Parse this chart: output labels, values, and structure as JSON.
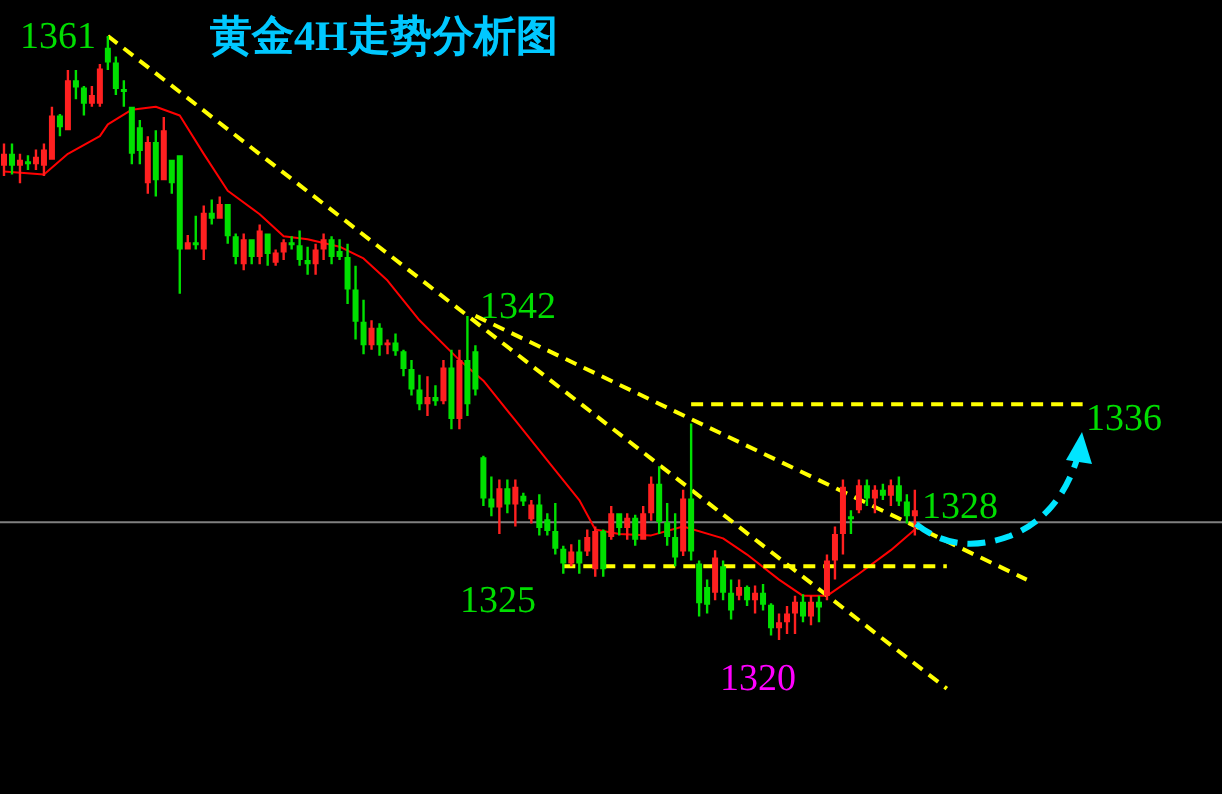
{
  "chart_data": {
    "type": "candlestick",
    "title": "黄金4H走势分析图",
    "tick_labels": false,
    "categories": [
      null,
      null,
      null,
      null,
      null,
      null,
      null,
      null,
      null,
      null,
      null,
      null,
      null,
      null,
      null,
      null,
      null,
      null,
      null,
      null,
      null,
      null,
      null,
      null,
      null,
      null,
      null,
      null,
      null,
      null,
      null,
      null,
      null,
      null,
      null,
      null,
      null,
      null,
      null,
      null,
      null,
      null,
      null,
      null,
      null,
      null,
      null,
      null,
      null,
      null,
      null,
      null,
      null,
      null,
      null,
      null,
      null,
      null,
      null,
      null,
      null,
      null,
      null,
      null,
      null,
      null,
      null,
      null,
      null,
      null,
      null,
      null,
      null,
      null,
      null,
      null,
      null,
      null,
      null,
      null,
      null,
      null,
      null,
      null,
      null,
      null,
      null,
      null,
      null,
      null,
      null,
      null,
      null,
      null,
      null,
      null,
      null,
      null,
      null,
      null,
      null,
      null,
      null,
      null,
      null,
      null,
      null,
      null,
      null,
      null,
      null,
      null,
      null,
      null,
      null,
      null,
      null,
      null,
      null,
      null,
      null,
      null,
      null,
      null,
      null,
      null,
      null,
      null,
      null,
      null,
      null,
      null,
      null,
      null,
      null,
      null
    ],
    "ohlc": [
      [
        1352.2,
        1353.7,
        1351.5,
        1353.0
      ],
      [
        1353.0,
        1353.7,
        1351.6,
        1352.2
      ],
      [
        1352.2,
        1353.0,
        1351.0,
        1352.6
      ],
      [
        1352.5,
        1352.9,
        1351.9,
        1352.3
      ],
      [
        1352.3,
        1353.3,
        1351.9,
        1352.8
      ],
      [
        1352.2,
        1353.7,
        1351.5,
        1353.3
      ],
      [
        1352.6,
        1356.2,
        1352.6,
        1355.6
      ],
      [
        1355.6,
        1355.7,
        1354.2,
        1354.8
      ],
      [
        1354.6,
        1358.7,
        1354.6,
        1358.0
      ],
      [
        1358.0,
        1358.7,
        1356.7,
        1357.5
      ],
      [
        1357.5,
        1357.6,
        1355.6,
        1356.4
      ],
      [
        1356.4,
        1357.6,
        1356.2,
        1357.0
      ],
      [
        1356.4,
        1359.1,
        1356.2,
        1358.8
      ],
      [
        1360.2,
        1361.0,
        1358.7,
        1359.2
      ],
      [
        1359.2,
        1359.6,
        1357.0,
        1357.4
      ],
      [
        1357.4,
        1358.0,
        1356.2,
        1357.2
      ],
      [
        1356.2,
        1356.2,
        1352.3,
        1353.0
      ],
      [
        1354.8,
        1355.3,
        1352.3,
        1353.2
      ],
      [
        1351.0,
        1354.2,
        1350.3,
        1353.8
      ],
      [
        1353.8,
        1354.6,
        1350.1,
        1351.2
      ],
      [
        1351.2,
        1355.5,
        1351.2,
        1354.6
      ],
      [
        1352.6,
        1352.6,
        1350.3,
        1351.0
      ],
      [
        1352.9,
        1352.9,
        1343.5,
        1346.5
      ],
      [
        1346.5,
        1347.5,
        1346.5,
        1347.0
      ],
      [
        1347.0,
        1348.8,
        1346.5,
        1346.8
      ],
      [
        1346.5,
        1349.5,
        1345.8,
        1349.0
      ],
      [
        1349.0,
        1349.9,
        1348.2,
        1348.6
      ],
      [
        1348.6,
        1350.1,
        1348.6,
        1349.6
      ],
      [
        1349.6,
        1349.6,
        1346.9,
        1347.4
      ],
      [
        1347.4,
        1347.6,
        1345.5,
        1346.0
      ],
      [
        1345.5,
        1347.6,
        1345.1,
        1347.2
      ],
      [
        1347.2,
        1347.2,
        1345.5,
        1346.0
      ],
      [
        1346.0,
        1348.2,
        1345.5,
        1347.8
      ],
      [
        1347.6,
        1347.6,
        1345.4,
        1346.2
      ],
      [
        1345.6,
        1346.5,
        1345.4,
        1346.3
      ],
      [
        1346.3,
        1347.2,
        1345.8,
        1347.0
      ],
      [
        1347.0,
        1347.4,
        1346.5,
        1346.8
      ],
      [
        1346.8,
        1347.8,
        1345.4,
        1345.8
      ],
      [
        1345.8,
        1346.7,
        1344.8,
        1345.5
      ],
      [
        1345.5,
        1346.9,
        1344.8,
        1346.5
      ],
      [
        1346.5,
        1347.6,
        1345.8,
        1347.2
      ],
      [
        1347.2,
        1347.4,
        1345.5,
        1346.0
      ],
      [
        1346.4,
        1347.2,
        1345.8,
        1346.0
      ],
      [
        1346.0,
        1346.9,
        1342.8,
        1343.8
      ],
      [
        1343.8,
        1345.4,
        1340.4,
        1341.6
      ],
      [
        1341.6,
        1343.1,
        1339.4,
        1340.0
      ],
      [
        1340.0,
        1341.7,
        1339.7,
        1341.2
      ],
      [
        1341.2,
        1341.5,
        1339.3,
        1340.0
      ],
      [
        1340.0,
        1340.4,
        1339.4,
        1340.2
      ],
      [
        1340.2,
        1340.8,
        1339.3,
        1339.6
      ],
      [
        1339.6,
        1339.7,
        1337.9,
        1338.4
      ],
      [
        1338.4,
        1339.0,
        1336.6,
        1337.0
      ],
      [
        1337.0,
        1338.0,
        1335.6,
        1336.0
      ],
      [
        1336.0,
        1337.9,
        1335.2,
        1336.5
      ],
      [
        1336.5,
        1337.3,
        1335.9,
        1336.2
      ],
      [
        1336.2,
        1339.0,
        1336.0,
        1338.5
      ],
      [
        1338.5,
        1339.7,
        1334.3,
        1335.0
      ],
      [
        1335.0,
        1339.7,
        1334.3,
        1339.0
      ],
      [
        1339.0,
        1342.0,
        1335.2,
        1336.0
      ],
      [
        1339.6,
        1340.0,
        1336.6,
        1337.0
      ],
      [
        1332.4,
        1332.5,
        1329.1,
        1329.6
      ],
      [
        1329.6,
        1331.1,
        1328.4,
        1329.0
      ],
      [
        1329.0,
        1330.9,
        1327.2,
        1330.3
      ],
      [
        1330.3,
        1330.9,
        1328.6,
        1329.2
      ],
      [
        1329.2,
        1330.9,
        1327.7,
        1330.4
      ],
      [
        1329.8,
        1330.0,
        1329.1,
        1329.4
      ],
      [
        1328.2,
        1329.5,
        1327.9,
        1329.2
      ],
      [
        1329.2,
        1329.9,
        1327.1,
        1327.6
      ],
      [
        1328.2,
        1328.6,
        1327.1,
        1327.4
      ],
      [
        1327.4,
        1329.3,
        1325.8,
        1326.2
      ],
      [
        1326.2,
        1326.4,
        1324.5,
        1325.2
      ],
      [
        1325.2,
        1326.5,
        1325.0,
        1326.0
      ],
      [
        1326.0,
        1326.8,
        1324.5,
        1325.2
      ],
      [
        1326.0,
        1327.5,
        1325.7,
        1327.0
      ],
      [
        1324.8,
        1327.7,
        1324.3,
        1327.4
      ],
      [
        1327.4,
        1327.5,
        1324.3,
        1324.8
      ],
      [
        1327.0,
        1329.1,
        1326.8,
        1328.6
      ],
      [
        1328.6,
        1328.6,
        1327.1,
        1327.6
      ],
      [
        1327.6,
        1328.6,
        1326.8,
        1328.3
      ],
      [
        1328.3,
        1328.5,
        1326.4,
        1326.8
      ],
      [
        1326.8,
        1329.1,
        1326.8,
        1328.6
      ],
      [
        1328.6,
        1331.1,
        1328.1,
        1330.6
      ],
      [
        1330.6,
        1331.8,
        1327.2,
        1328.0
      ],
      [
        1328.0,
        1329.3,
        1326.4,
        1327.0
      ],
      [
        1327.0,
        1328.6,
        1325.0,
        1325.6
      ],
      [
        1326.0,
        1330.2,
        1325.7,
        1329.6
      ],
      [
        1329.6,
        1334.7,
        1325.4,
        1326.0
      ],
      [
        1325.2,
        1325.4,
        1321.6,
        1322.5
      ],
      [
        1323.6,
        1324.1,
        1321.8,
        1322.4
      ],
      [
        1323.2,
        1326.1,
        1322.7,
        1325.6
      ],
      [
        1325.0,
        1325.4,
        1322.7,
        1323.2
      ],
      [
        1323.2,
        1324.1,
        1321.4,
        1322.0
      ],
      [
        1323.0,
        1324.1,
        1322.7,
        1323.6
      ],
      [
        1323.6,
        1323.7,
        1322.3,
        1322.7
      ],
      [
        1322.7,
        1323.7,
        1321.8,
        1323.2
      ],
      [
        1323.2,
        1323.8,
        1322.0,
        1322.4
      ],
      [
        1322.4,
        1322.5,
        1320.3,
        1320.8
      ],
      [
        1320.8,
        1321.8,
        1320.0,
        1321.2
      ],
      [
        1321.2,
        1322.3,
        1320.4,
        1321.8
      ],
      [
        1321.8,
        1323.0,
        1320.4,
        1322.6
      ],
      [
        1322.6,
        1323.1,
        1321.2,
        1321.6
      ],
      [
        1321.6,
        1323.0,
        1321.0,
        1322.6
      ],
      [
        1322.6,
        1323.0,
        1321.2,
        1322.2
      ],
      [
        1323.0,
        1325.8,
        1322.7,
        1325.4
      ],
      [
        1325.4,
        1327.7,
        1324.1,
        1327.2
      ],
      [
        1327.2,
        1330.9,
        1325.8,
        1330.4
      ],
      [
        1328.4,
        1328.8,
        1327.2,
        1328.2
      ],
      [
        1328.8,
        1330.9,
        1328.6,
        1330.5
      ],
      [
        1330.5,
        1330.9,
        1329.1,
        1329.6
      ],
      [
        1329.6,
        1330.5,
        1328.6,
        1330.2
      ],
      [
        1330.2,
        1330.6,
        1329.5,
        1329.8
      ],
      [
        1329.8,
        1330.9,
        1329.1,
        1330.5
      ],
      [
        1330.5,
        1331.1,
        1329.1,
        1329.4
      ],
      [
        1329.4,
        1329.9,
        1327.9,
        1328.4
      ],
      [
        1328.4,
        1330.2,
        1327.1,
        1328.8
      ],
      null,
      null,
      null,
      null,
      null,
      null,
      null,
      null,
      null,
      null,
      null,
      null,
      null,
      null,
      null,
      null,
      null,
      null,
      null,
      null,
      null
    ],
    "series": [
      {
        "type": "line",
        "color": "#ff0000",
        "values": [
          1351.8,
          null,
          null,
          null,
          null,
          1351.6,
          null,
          null,
          1353.0,
          null,
          null,
          null,
          1354.2,
          1355.0,
          null,
          null,
          1356.0,
          null,
          null,
          1356.2,
          null,
          null,
          1355.6,
          null,
          null,
          1353.0,
          null,
          null,
          1350.5,
          null,
          null,
          null,
          1348.9,
          null,
          null,
          1347.4,
          null,
          null,
          1347.2,
          null,
          null,
          null,
          1346.7,
          null,
          null,
          1345.9,
          null,
          null,
          1344.4,
          null,
          null,
          null,
          1341.7,
          null,
          null,
          null,
          null,
          1339.0,
          null,
          null,
          1337.6,
          null,
          null,
          null,
          1334.9,
          null,
          null,
          null,
          1332.2,
          null,
          null,
          null,
          1329.5,
          null,
          1327.5,
          null,
          null,
          1327.2,
          null,
          null,
          null,
          1327.1,
          null,
          null,
          null,
          1327.7,
          null,
          null,
          null,
          null,
          1326.9,
          null,
          null,
          1325.8,
          null,
          null,
          null,
          1324.1,
          null,
          null,
          1323.0,
          null,
          null,
          1323.0,
          null,
          null,
          null,
          1324.5,
          null,
          null,
          null,
          1326.1,
          null,
          null,
          1327.5,
          null,
          null,
          null,
          null,
          null,
          null,
          null,
          null,
          null,
          null,
          null,
          null,
          null,
          null,
          null,
          null,
          null,
          null,
          null,
          null,
          null
        ]
      },
      {
        "type": "line",
        "color": "#ffff00",
        "line_style": "dashed",
        "values": [
          null,
          null,
          null,
          null,
          null,
          null,
          null,
          null,
          null,
          null,
          null,
          null,
          null,
          1361,
          null,
          null,
          null,
          null,
          null,
          null,
          null,
          null,
          null,
          null,
          null,
          null,
          null,
          null,
          null,
          null,
          null,
          null,
          null,
          null,
          null,
          null,
          null,
          null,
          null,
          null,
          null,
          null,
          null,
          null,
          null,
          null,
          null,
          null,
          null,
          null,
          null,
          null,
          null,
          null,
          null,
          null,
          null,
          null,
          null,
          null,
          null,
          null,
          null,
          null,
          null,
          null,
          null,
          null,
          null,
          null,
          null,
          null,
          null,
          null,
          null,
          null,
          null,
          null,
          null,
          null,
          null,
          null,
          null,
          null,
          null,
          null,
          null,
          null,
          null,
          null,
          null,
          null,
          null,
          null,
          null,
          null,
          null,
          null,
          null,
          null,
          null,
          null,
          null,
          null,
          null,
          null,
          null,
          null,
          null,
          null,
          null,
          null,
          null,
          null,
          null,
          null,
          null,
          null,
          1316.7,
          null,
          null,
          null,
          null,
          null,
          null,
          null,
          null,
          null,
          null,
          null,
          null,
          null,
          null,
          null,
          null,
          null
        ]
      },
      {
        "type": "line",
        "color": "#ffff00",
        "line_style": "dashed",
        "values": [
          null,
          null,
          null,
          null,
          null,
          null,
          null,
          null,
          null,
          null,
          null,
          null,
          null,
          null,
          null,
          null,
          null,
          null,
          null,
          null,
          null,
          null,
          null,
          null,
          null,
          null,
          null,
          null,
          null,
          null,
          null,
          null,
          null,
          null,
          null,
          null,
          null,
          null,
          null,
          null,
          null,
          null,
          null,
          null,
          null,
          null,
          null,
          null,
          null,
          null,
          null,
          null,
          null,
          null,
          null,
          null,
          null,
          null,
          null,
          1342,
          null,
          null,
          null,
          null,
          null,
          null,
          null,
          null,
          null,
          null,
          null,
          null,
          null,
          null,
          null,
          null,
          null,
          null,
          null,
          null,
          null,
          null,
          null,
          null,
          null,
          null,
          null,
          null,
          null,
          null,
          null,
          null,
          null,
          null,
          null,
          null,
          null,
          null,
          null,
          null,
          null,
          null,
          null,
          null,
          null,
          null,
          null,
          null,
          null,
          null,
          null,
          null,
          null,
          null,
          null,
          null,
          null,
          null,
          null,
          null,
          null,
          null,
          null,
          null,
          null,
          null,
          null,
          null,
          1324.1,
          null,
          null,
          null,
          null,
          null,
          null,
          null
        ]
      },
      {
        "type": "line",
        "color": "#ffff00",
        "line_style": "dashed",
        "values": [
          null,
          null,
          null,
          null,
          null,
          null,
          null,
          null,
          null,
          null,
          null,
          null,
          null,
          null,
          null,
          null,
          null,
          null,
          null,
          null,
          null,
          null,
          null,
          null,
          null,
          null,
          null,
          null,
          null,
          null,
          null,
          null,
          null,
          null,
          null,
          null,
          null,
          null,
          null,
          null,
          null,
          null,
          null,
          null,
          null,
          null,
          null,
          null,
          null,
          null,
          null,
          null,
          null,
          null,
          null,
          null,
          null,
          null,
          null,
          null,
          null,
          null,
          null,
          null,
          null,
          null,
          null,
          null,
          null,
          null,
          null,
          null,
          null,
          null,
          null,
          null,
          null,
          null,
          null,
          null,
          null,
          null,
          null,
          null,
          null,
          null,
          1336,
          null,
          null,
          null,
          null,
          null,
          null,
          null,
          null,
          null,
          null,
          null,
          null,
          null,
          null,
          null,
          null,
          null,
          null,
          null,
          null,
          null,
          null,
          null,
          null,
          null,
          null,
          null,
          null,
          null,
          null,
          null,
          null,
          null,
          null,
          null,
          null,
          null,
          null,
          null,
          null,
          null,
          null,
          null,
          null,
          null,
          null,
          null,
          null,
          1336
        ]
      },
      {
        "type": "line",
        "color": "#ffff00",
        "line_style": "dashed",
        "values": [
          null,
          null,
          null,
          null,
          null,
          null,
          null,
          null,
          null,
          null,
          null,
          null,
          null,
          null,
          null,
          null,
          null,
          null,
          null,
          null,
          null,
          null,
          null,
          null,
          null,
          null,
          null,
          null,
          null,
          null,
          null,
          null,
          null,
          null,
          null,
          null,
          null,
          null,
          null,
          null,
          null,
          null,
          null,
          null,
          null,
          null,
          null,
          null,
          null,
          null,
          null,
          null,
          null,
          null,
          null,
          null,
          null,
          null,
          null,
          null,
          null,
          null,
          null,
          null,
          null,
          null,
          null,
          null,
          null,
          null,
          1325,
          null,
          null,
          null,
          null,
          null,
          null,
          null,
          null,
          null,
          null,
          null,
          null,
          null,
          null,
          null,
          null,
          null,
          null,
          null,
          null,
          null,
          null,
          null,
          null,
          null,
          null,
          null,
          null,
          null,
          null,
          null,
          null,
          null,
          null,
          null,
          null,
          null,
          null,
          null,
          null,
          null,
          null,
          null,
          null,
          null,
          null,
          null,
          1325,
          null,
          null,
          null,
          null,
          null,
          null,
          null,
          null,
          null,
          null,
          null,
          null,
          null,
          null,
          null,
          null,
          null
        ]
      }
    ],
    "ref_lines": [
      {
        "axis": "y",
        "value": 1328,
        "label": "1328",
        "color": "#808080"
      }
    ],
    "annotations": [
      "1361",
      "1342",
      "1336",
      "1325",
      "1320"
    ]
  }
}
